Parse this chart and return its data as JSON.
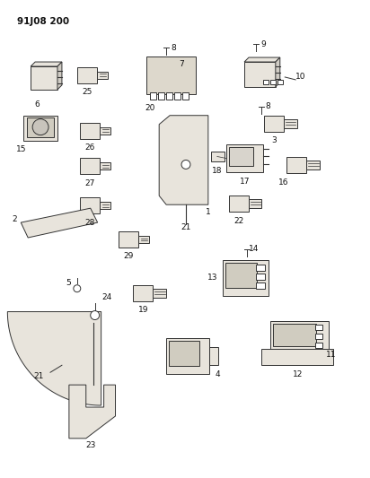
{
  "title": "91J08 200",
  "bg_color": "#ffffff",
  "fig_width": 4.12,
  "fig_height": 5.33,
  "dpi": 100,
  "ec": "#333333",
  "fc": "#e8e4dc",
  "lw": 0.7
}
